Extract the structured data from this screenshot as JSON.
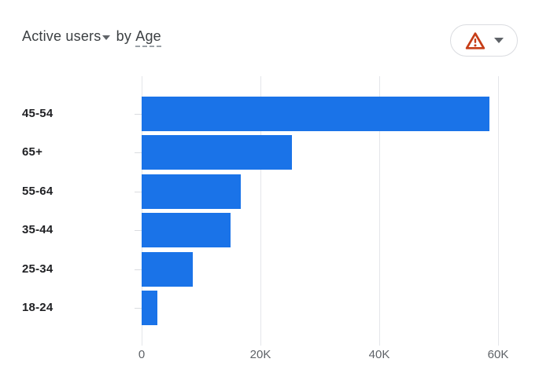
{
  "header": {
    "metric": "Active users",
    "connector": " by ",
    "dimension": "Age",
    "warning_button": {
      "icon": "warning-triangle-icon",
      "caret": "chevron-down-icon"
    }
  },
  "colors": {
    "bar": "#1a73e8",
    "warning": "#c63d17",
    "caret_gray": "#5f6368",
    "category_label": "#202124",
    "axis_label": "#5f6368",
    "gridline": "#e4e6ea",
    "pill_border": "#dadce0",
    "title_text": "#3c4043",
    "dashed_underline": "#9aa0a6"
  },
  "chart_data": {
    "type": "bar",
    "orientation": "horizontal",
    "title": "Active users by Age",
    "series_name": "Active users",
    "ylabel": "Age",
    "xlabel": "",
    "categories": [
      "45-54",
      "65+",
      "55-64",
      "35-44",
      "25-34",
      "18-24"
    ],
    "values": [
      58500,
      25300,
      16700,
      15000,
      8600,
      2600
    ],
    "xlim": [
      0,
      63500
    ],
    "x_ticks": [
      {
        "value": 0,
        "label": "0"
      },
      {
        "value": 20000,
        "label": "20K"
      },
      {
        "value": 40000,
        "label": "40K"
      },
      {
        "value": 60000,
        "label": "60K"
      }
    ],
    "grid": "vertical-only",
    "legend": "none"
  }
}
